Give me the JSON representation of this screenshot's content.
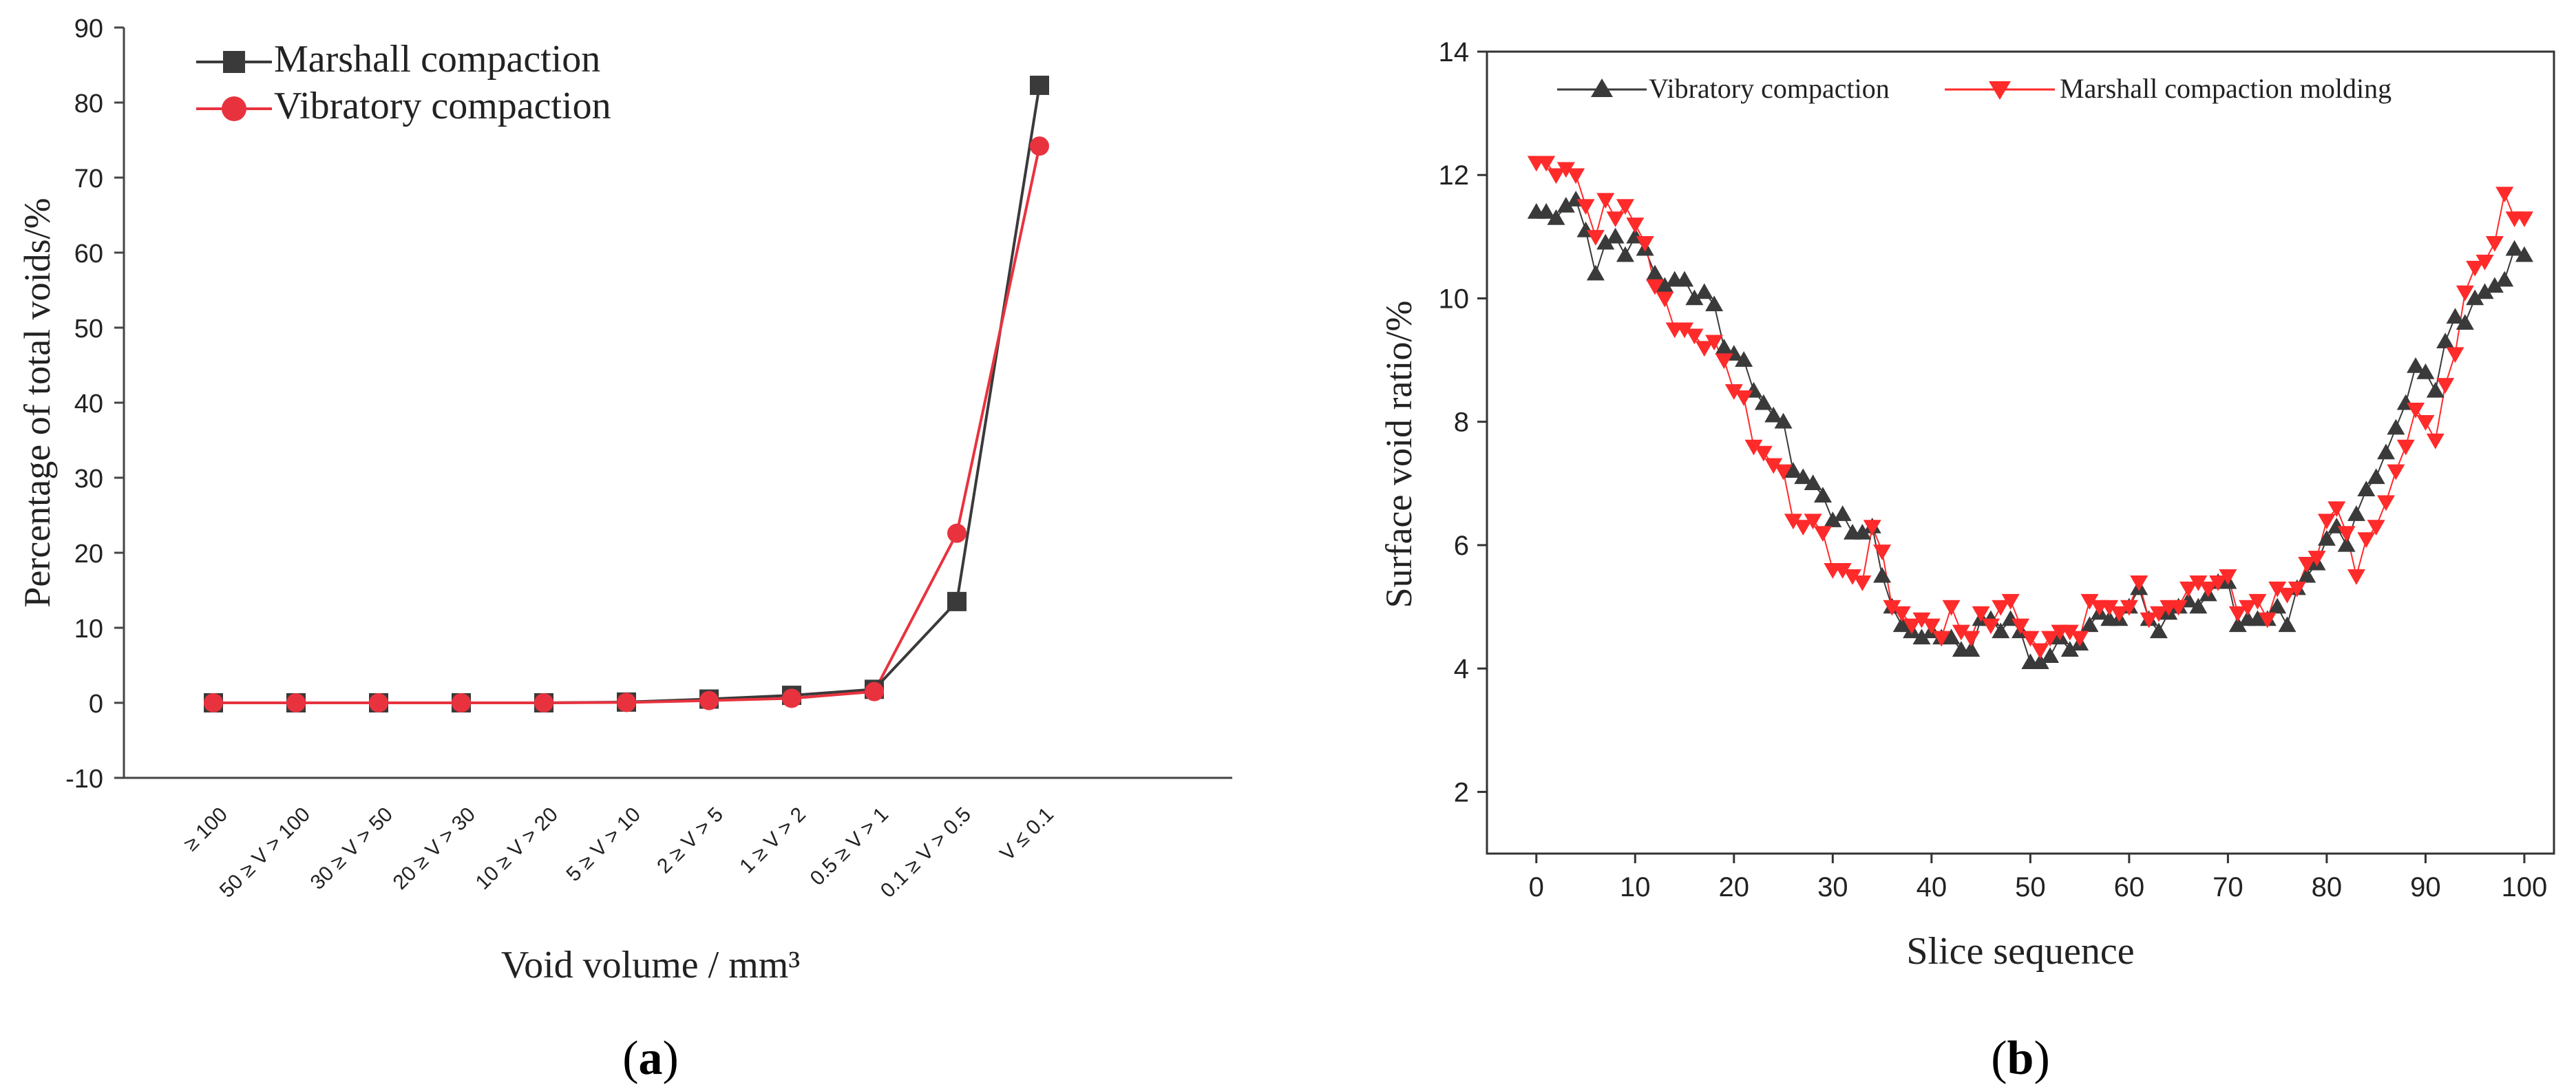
{
  "chart_data": [
    {
      "id": "a",
      "type": "line",
      "panel_label": "(a)",
      "panel_prefix": "(",
      "panel_letter": "a",
      "panel_suffix": ")",
      "xlabel": "Void volume / mm³",
      "ylabel": "Percentage of total voids/%",
      "ylim": [
        -10,
        90
      ],
      "yticks": [
        -10,
        0,
        10,
        20,
        30,
        40,
        50,
        60,
        70,
        80,
        90
      ],
      "categories": [
        "≥ 100",
        "50 ≥ V > 100",
        "30 ≥ V > 50",
        "20 ≥ V > 30",
        "10 ≥ V > 20",
        "5 ≥ V > 10",
        "2 ≥ V > 5",
        "1 ≥ V > 2",
        "0.5 ≥ V > 1",
        "0.1 ≥ V > 0.5",
        "V ≤ 0.1"
      ],
      "legend_position": "top-left",
      "series": [
        {
          "name": "Marshall compaction",
          "color": "#3a3a3a",
          "marker": "square",
          "values": [
            0,
            0,
            0,
            0,
            0,
            0.1,
            0.5,
            1.0,
            1.8,
            13.5,
            82.3
          ]
        },
        {
          "name": "Vibratory compaction",
          "color": "#e8333f",
          "marker": "circle",
          "values": [
            0,
            0,
            0,
            0,
            0,
            0.05,
            0.3,
            0.6,
            1.5,
            22.6,
            74.2
          ]
        }
      ]
    },
    {
      "id": "b",
      "type": "line",
      "panel_label": "(b)",
      "panel_prefix": "(",
      "panel_letter": "b",
      "panel_suffix": ")",
      "xlabel": "Slice sequence",
      "ylabel": "Surface void ratio/%",
      "xlim": [
        -5,
        103
      ],
      "ylim": [
        1,
        14
      ],
      "xticks": [
        0,
        10,
        20,
        30,
        40,
        50,
        60,
        70,
        80,
        90,
        100
      ],
      "yticks": [
        2,
        4,
        6,
        8,
        10,
        12,
        14
      ],
      "legend_position": "top",
      "series": [
        {
          "name": "Vibratory compaction",
          "color": "#3a3a3a",
          "marker": "triangle-up",
          "values": [
            11.4,
            11.4,
            11.3,
            11.5,
            11.6,
            11.1,
            10.4,
            10.9,
            11.0,
            10.7,
            11.0,
            10.8,
            10.4,
            10.2,
            10.3,
            10.3,
            10.0,
            10.1,
            9.9,
            9.2,
            9.1,
            9.0,
            8.5,
            8.3,
            8.1,
            8.0,
            7.2,
            7.1,
            7.0,
            6.8,
            6.4,
            6.5,
            6.2,
            6.2,
            6.3,
            5.5,
            5.0,
            4.7,
            4.6,
            4.5,
            4.6,
            4.5,
            4.5,
            4.3,
            4.3,
            4.8,
            4.8,
            4.6,
            4.8,
            4.6,
            4.1,
            4.1,
            4.2,
            4.5,
            4.3,
            4.4,
            4.7,
            4.9,
            4.8,
            4.8,
            5.0,
            5.3,
            4.8,
            4.6,
            4.9,
            5.0,
            5.1,
            5.0,
            5.2,
            5.4,
            5.4,
            4.7,
            4.8,
            4.8,
            4.8,
            5.0,
            4.7,
            5.3,
            5.5,
            5.7,
            6.1,
            6.3,
            6.0,
            6.5,
            6.9,
            7.1,
            7.5,
            7.9,
            8.3,
            8.9,
            8.8,
            8.5,
            9.3,
            9.7,
            9.6,
            10.0,
            10.1,
            10.2,
            10.3,
            10.8,
            10.7
          ]
        },
        {
          "name": "Marshall compaction molding",
          "color": "#ff2a2a",
          "marker": "triangle-down",
          "values": [
            12.2,
            12.2,
            12.0,
            12.1,
            12.0,
            11.5,
            11.0,
            11.6,
            11.3,
            11.5,
            11.2,
            10.9,
            10.2,
            10.0,
            9.5,
            9.5,
            9.4,
            9.2,
            9.3,
            9.0,
            8.5,
            8.4,
            7.6,
            7.5,
            7.3,
            7.2,
            6.4,
            6.3,
            6.4,
            6.2,
            5.6,
            5.6,
            5.5,
            5.4,
            6.3,
            5.9,
            5.0,
            4.9,
            4.7,
            4.8,
            4.7,
            4.5,
            5.0,
            4.6,
            4.5,
            4.9,
            4.7,
            5.0,
            5.1,
            4.7,
            4.5,
            4.3,
            4.5,
            4.6,
            4.6,
            4.5,
            5.1,
            5.0,
            5.0,
            4.9,
            5.0,
            5.4,
            4.8,
            4.9,
            5.0,
            5.0,
            5.3,
            5.4,
            5.3,
            5.4,
            5.5,
            4.9,
            5.0,
            5.1,
            4.8,
            5.3,
            5.2,
            5.3,
            5.7,
            5.8,
            6.4,
            6.6,
            6.2,
            5.5,
            6.1,
            6.3,
            6.7,
            7.2,
            7.6,
            8.2,
            8.0,
            7.7,
            8.6,
            9.1,
            10.1,
            10.5,
            10.6,
            10.9,
            11.7,
            11.3,
            11.3
          ]
        }
      ]
    }
  ]
}
